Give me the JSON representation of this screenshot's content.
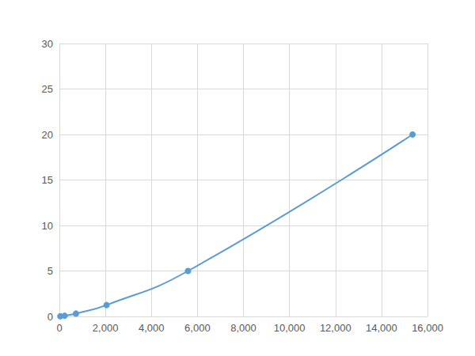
{
  "chart_data": {
    "type": "line",
    "x": [
      40,
      230,
      720,
      2050,
      5590,
      15350
    ],
    "values": [
      0.02,
      0.078,
      0.3125,
      1.25,
      5,
      20
    ],
    "color": "#5b9bd5",
    "marker": "circle",
    "line_style": "smooth",
    "xlim": [
      0,
      16000
    ],
    "xticks": [
      0,
      2000,
      4000,
      6000,
      8000,
      10000,
      12000,
      14000,
      16000
    ],
    "ylim": [
      0,
      30
    ],
    "yticks": [
      0,
      5,
      10,
      15,
      20,
      25,
      30
    ],
    "grid": true
  }
}
